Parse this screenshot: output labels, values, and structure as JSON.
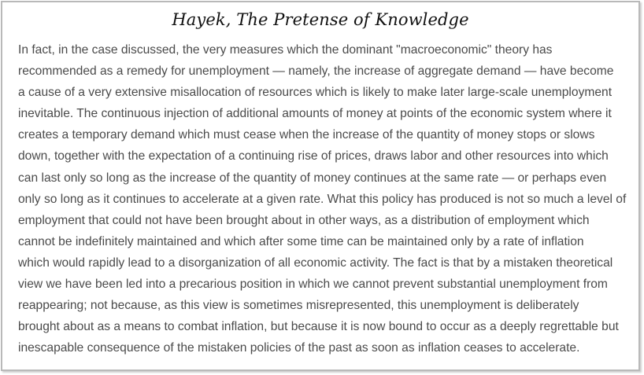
{
  "title": "Hayek, The Pretense of Knowledge",
  "paragraph_lines": [
    "In fact, in the case discussed, the very measures which the dominant \"macroeconomic\" theory has",
    "recommended as a remedy for unemployment — namely, the increase of aggregate demand — have become",
    "a cause of a very extensive misallocation of resources which is likely to make later large-scale unemployment",
    "inevitable. The continuous injection of additional amounts of money at points of the economic system where it",
    "creates a temporary demand which must cease when the increase of the quantity of money stops or slows",
    "down, together with the expectation of a continuing rise of prices, draws labor and other resources into which",
    "can last only so long as the increase of the quantity of money continues at the same rate — or perhaps even",
    "only so long as it continues to accelerate at a given rate. What this policy has produced is not so much a level of",
    "employment that could not have been brought about in other ways, as a distribution of employment which",
    "cannot be indefinitely maintained and which after some time can be maintained only by a rate of inflation",
    "which would rapidly lead to a disorganization of all economic activity. The fact is that by a mistaken theoretical",
    "view we have been led into a precarious position in which we cannot prevent substantial unemployment from",
    "reappearing; not because, as this view is sometimes misrepresented, this unemployment is deliberately",
    "brought about as a means to combat inflation, but because it is now bound to occur as a deeply regrettable but",
    "inescapable consequence of the mistaken policies of the past as soon as inflation ceases to accelerate."
  ]
}
